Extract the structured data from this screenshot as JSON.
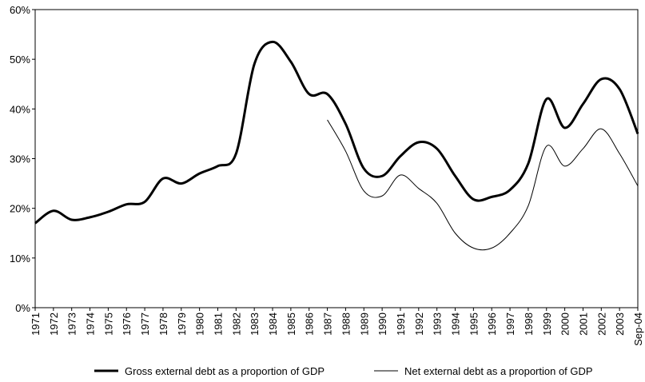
{
  "chart_data": {
    "type": "line",
    "categories": [
      "1971",
      "1972",
      "1973",
      "1974",
      "1975",
      "1976",
      "1977",
      "1978",
      "1979",
      "1980",
      "1981",
      "1982",
      "1983",
      "1984",
      "1985",
      "1986",
      "1987",
      "1988",
      "1989",
      "1990",
      "1991",
      "1992",
      "1993",
      "1994",
      "1995",
      "1996",
      "1997",
      "1998",
      "1999",
      "2000",
      "2001",
      "2002",
      "2003",
      "Sep-04"
    ],
    "series": [
      {
        "name": "Gross external debt as a proportion of GDP",
        "color": "#000000",
        "values": [
          17,
          19.5,
          17.7,
          18.2,
          19.3,
          20.8,
          21.3,
          26,
          25,
          27,
          28.5,
          31,
          49,
          53.5,
          49.5,
          43,
          43,
          37,
          28,
          26.5,
          30.5,
          33.3,
          32,
          26.5,
          21.8,
          22.3,
          23.7,
          29,
          42,
          36.2,
          41,
          46,
          44,
          35
        ]
      },
      {
        "name": "Net external debt as a proportion of GDP",
        "color": "#000000",
        "values": [
          null,
          null,
          null,
          null,
          null,
          null,
          null,
          null,
          null,
          null,
          null,
          null,
          null,
          null,
          null,
          null,
          37.8,
          31.5,
          23.5,
          22.5,
          26.7,
          24,
          21,
          15,
          12,
          12,
          15,
          20.5,
          32.5,
          28.5,
          32,
          36,
          31,
          24.5
        ]
      }
    ],
    "ylim": [
      0,
      60
    ],
    "yticks": [
      {
        "value": 0,
        "label": "0%"
      },
      {
        "value": 10,
        "label": "10%"
      },
      {
        "value": 20,
        "label": "20%"
      },
      {
        "value": 30,
        "label": "30%"
      },
      {
        "value": 40,
        "label": "40%"
      },
      {
        "value": 50,
        "label": "50%"
      },
      {
        "value": 60,
        "label": "60%"
      }
    ],
    "grid": false,
    "legend": "bottom"
  }
}
